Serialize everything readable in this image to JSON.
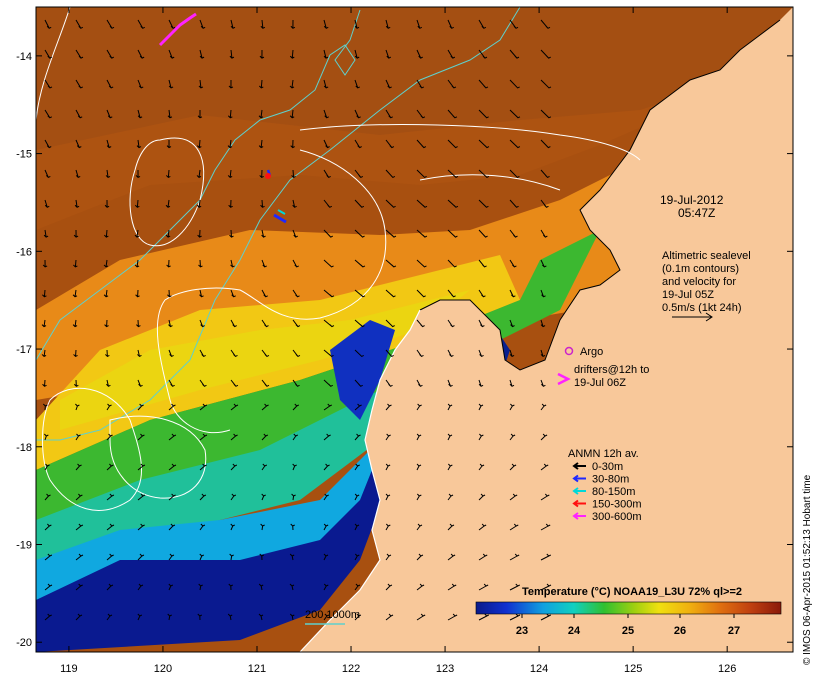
{
  "map": {
    "lon_min": 118.65,
    "lon_max": 126.7,
    "lat_min": -20.1,
    "lat_max": -13.5,
    "x_ticks": [
      "119",
      "120",
      "121",
      "122",
      "123",
      "124",
      "125",
      "126"
    ],
    "y_ticks": [
      "-14",
      "-15",
      "-16",
      "-17",
      "-18",
      "-19",
      "-20"
    ]
  },
  "colors": {
    "land": "#f8c89a",
    "frame": "#000000",
    "contour_200m": "#5fd0cc",
    "sealevel_contour": "#ffffff",
    "arrow": "#000000",
    "argo": "#cc22cc",
    "drifter": "#ff22ff"
  },
  "annotations": {
    "date": "19-Jul-2012",
    "time": "05:47Z",
    "altimetry": [
      "Altimetric sealevel",
      "(0.1m contours)",
      "and velocity for",
      "19-Jul 05Z",
      "0.5m/s (1kt 24h)"
    ],
    "argo_label": "Argo",
    "drifters": [
      "drifters@12h to",
      "19-Jul 06Z"
    ]
  },
  "anmn_legend": {
    "title": "ANMN 12h av.",
    "items": [
      {
        "label": "0-30m",
        "color": "#000000"
      },
      {
        "label": "30-80m",
        "color": "#1e28ff"
      },
      {
        "label": "80-150m",
        "color": "#00d8d8"
      },
      {
        "label": "150-300m",
        "color": "#ff1010"
      },
      {
        "label": "300-600m",
        "color": "#ff22ff"
      }
    ]
  },
  "colorbar": {
    "title": "Temperature (°C) NOAA19_L3U 72% ql>=2",
    "ticks": [
      "23",
      "24",
      "25",
      "26",
      "27"
    ]
  },
  "isobath_legend": "200 1000m",
  "credit": "© IMOS 06-Apr-2015 01:52:13 Hobart time"
}
